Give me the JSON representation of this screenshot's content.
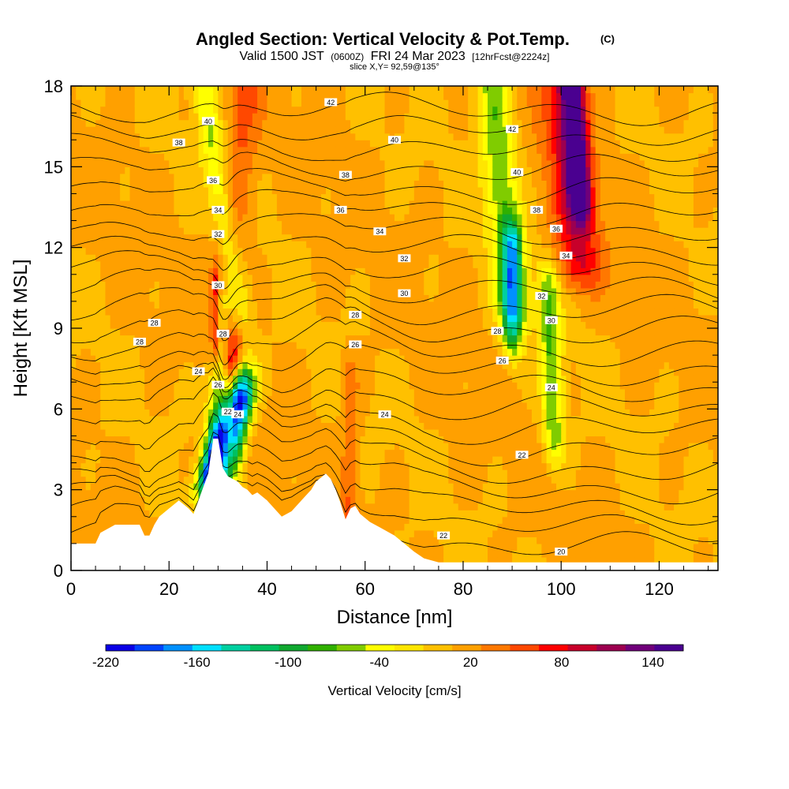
{
  "header": {
    "title": "Angled Section: Vertical Velocity & Pot.Temp.",
    "copyright": "(C)",
    "valid_prefix": "Valid 1500 JST",
    "valid_utc": "(0600Z)",
    "valid_date": "FRI 24 Mar 2023",
    "forecast": "[12hrFcst@2224z]",
    "slice": "slice X,Y= 92,59@135°"
  },
  "chart_data": {
    "type": "heatmap",
    "title": "Angled Section: Vertical Velocity & Pot.Temp.",
    "xlabel": "Distance [nm]",
    "ylabel": "Height [Kft MSL]",
    "xlim": [
      0,
      132
    ],
    "ylim": [
      0,
      18
    ],
    "x_ticks": [
      0,
      20,
      40,
      60,
      80,
      100,
      120
    ],
    "y_ticks": [
      0,
      3,
      6,
      9,
      12,
      15,
      18
    ],
    "colorbar": {
      "label": "Vertical Velocity [cm/s]",
      "min": -220,
      "max": 160,
      "step": 20,
      "tick_values": [
        -220,
        -160,
        -100,
        -40,
        20,
        80,
        140
      ],
      "colors": [
        "#0a00e6",
        "#0044ff",
        "#0090ff",
        "#00e0ff",
        "#00d0a0",
        "#00c060",
        "#10a830",
        "#30b000",
        "#80cc00",
        "#ffff00",
        "#ffe600",
        "#ffc000",
        "#ffa000",
        "#ff7800",
        "#ff4800",
        "#ff0000",
        "#c8002a",
        "#9c0050",
        "#70007a",
        "#4a0090"
      ]
    },
    "terrain": [
      [
        0,
        1.0
      ],
      [
        5,
        1.0
      ],
      [
        6,
        1.4
      ],
      [
        9,
        1.7
      ],
      [
        14,
        1.7
      ],
      [
        15,
        1.3
      ],
      [
        16,
        1.3
      ],
      [
        17,
        1.7
      ],
      [
        18,
        2.0
      ],
      [
        20,
        2.3
      ],
      [
        22,
        2.6
      ],
      [
        24,
        2.3
      ],
      [
        25,
        2.1
      ],
      [
        26,
        2.6
      ],
      [
        27,
        3.1
      ],
      [
        28,
        3.6
      ],
      [
        29,
        4.9
      ],
      [
        30,
        4.9
      ],
      [
        31,
        3.8
      ],
      [
        32,
        3.5
      ],
      [
        34,
        3.3
      ],
      [
        35,
        3.1
      ],
      [
        36,
        3.0
      ],
      [
        37,
        2.8
      ],
      [
        38,
        2.9
      ],
      [
        40,
        2.6
      ],
      [
        42,
        2.2
      ],
      [
        43,
        2.0
      ],
      [
        45,
        2.2
      ],
      [
        47,
        2.6
      ],
      [
        49,
        3.0
      ],
      [
        50,
        3.3
      ],
      [
        52,
        3.6
      ],
      [
        53,
        3.4
      ],
      [
        54,
        3.0
      ],
      [
        55,
        2.5
      ],
      [
        56,
        1.9
      ],
      [
        57,
        2.3
      ],
      [
        58,
        2.4
      ],
      [
        59,
        2.1
      ],
      [
        61,
        1.8
      ],
      [
        63,
        1.6
      ],
      [
        66,
        1.3
      ],
      [
        68,
        1.0
      ],
      [
        70,
        0.7
      ],
      [
        72,
        0.45
      ],
      [
        75,
        0.3
      ],
      [
        80,
        0.3
      ],
      [
        90,
        0.3
      ],
      [
        100,
        0.3
      ],
      [
        110,
        0.3
      ],
      [
        120,
        0.3
      ],
      [
        132,
        0.3
      ]
    ],
    "vertical_velocity_features": [
      {
        "x": 29.5,
        "z0": 3.6,
        "z1": 9.5,
        "tilt": 0.35,
        "width": 1.8,
        "value": -40
      },
      {
        "x": 31,
        "z0": 3.8,
        "z1": 6.5,
        "tilt": 1.6,
        "width": 2.5,
        "value": -170
      },
      {
        "x": 33,
        "z0": 3.3,
        "z1": 6.0,
        "tilt": 1.4,
        "width": 2.4,
        "value": -140
      },
      {
        "x": 32.5,
        "z0": 4.0,
        "z1": 7.5,
        "tilt": 0.3,
        "width": 1.4,
        "value": 100
      },
      {
        "x": 29.5,
        "z0": 8.5,
        "z1": 10.5,
        "tilt": 0.0,
        "width": 0.9,
        "value": 80
      },
      {
        "x": 33.5,
        "z0": 9.0,
        "z1": 18.0,
        "tilt": 0.5,
        "width": 3.5,
        "value": 60
      },
      {
        "x": 30.5,
        "z0": 10.0,
        "z1": 18.0,
        "tilt": -0.9,
        "width": 2.5,
        "value": -40
      },
      {
        "x": 57,
        "z0": 1.5,
        "z1": 7.0,
        "tilt": 0.0,
        "width": 1.6,
        "value": 60
      },
      {
        "x": 88,
        "z0": 10.0,
        "z1": 18.0,
        "tilt": -0.5,
        "width": 3.5,
        "value": -60
      },
      {
        "x": 90,
        "z0": 9.0,
        "z1": 12.0,
        "tilt": 0.0,
        "width": 2.0,
        "value": -100
      },
      {
        "x": 98,
        "z0": 5.0,
        "z1": 10.5,
        "tilt": -0.2,
        "width": 2.2,
        "value": -60
      },
      {
        "x": 102,
        "z0": 11.5,
        "z1": 18.0,
        "tilt": -0.5,
        "width": 4.5,
        "value": 100
      },
      {
        "x": 103,
        "z0": 14.0,
        "z1": 18.0,
        "tilt": -0.4,
        "width": 2.2,
        "value": 160
      }
    ],
    "potential_temperature_contours": {
      "levels": [
        20,
        21,
        22,
        23,
        24,
        25,
        26,
        27,
        28,
        29,
        30,
        31,
        32,
        33,
        34,
        35,
        36,
        37,
        38,
        39,
        40,
        41,
        42
      ],
      "labels": [
        {
          "text": "42",
          "x": 53,
          "z": 17.4
        },
        {
          "text": "42",
          "x": 90,
          "z": 16.4
        },
        {
          "text": "40",
          "x": 28,
          "z": 16.7
        },
        {
          "text": "40",
          "x": 66,
          "z": 16.0
        },
        {
          "text": "40",
          "x": 91,
          "z": 14.8
        },
        {
          "text": "38",
          "x": 22,
          "z": 15.9
        },
        {
          "text": "38",
          "x": 56,
          "z": 14.7
        },
        {
          "text": "38",
          "x": 95,
          "z": 13.4
        },
        {
          "text": "36",
          "x": 29,
          "z": 14.5
        },
        {
          "text": "36",
          "x": 55,
          "z": 13.4
        },
        {
          "text": "36",
          "x": 99,
          "z": 12.7
        },
        {
          "text": "34",
          "x": 30,
          "z": 13.4
        },
        {
          "text": "34",
          "x": 63,
          "z": 12.6
        },
        {
          "text": "34",
          "x": 101,
          "z": 11.7
        },
        {
          "text": "32",
          "x": 30,
          "z": 12.5
        },
        {
          "text": "32",
          "x": 68,
          "z": 11.6
        },
        {
          "text": "32",
          "x": 96,
          "z": 10.2
        },
        {
          "text": "30",
          "x": 30,
          "z": 10.6
        },
        {
          "text": "30",
          "x": 68,
          "z": 10.3
        },
        {
          "text": "30",
          "x": 98,
          "z": 9.3
        },
        {
          "text": "28",
          "x": 17,
          "z": 9.2
        },
        {
          "text": "28",
          "x": 14,
          "z": 8.5
        },
        {
          "text": "28",
          "x": 31,
          "z": 8.8
        },
        {
          "text": "28",
          "x": 58,
          "z": 9.5
        },
        {
          "text": "28",
          "x": 87,
          "z": 8.9
        },
        {
          "text": "26",
          "x": 58,
          "z": 8.4
        },
        {
          "text": "26",
          "x": 88,
          "z": 7.8
        },
        {
          "text": "26",
          "x": 30,
          "z": 6.9
        },
        {
          "text": "24",
          "x": 26,
          "z": 7.4
        },
        {
          "text": "24",
          "x": 34,
          "z": 5.8
        },
        {
          "text": "24",
          "x": 64,
          "z": 5.8
        },
        {
          "text": "24",
          "x": 98,
          "z": 6.8
        },
        {
          "text": "22",
          "x": 32,
          "z": 5.9
        },
        {
          "text": "22",
          "x": 92,
          "z": 4.3
        },
        {
          "text": "22",
          "x": 76,
          "z": 1.3
        },
        {
          "text": "20",
          "x": 100,
          "z": 0.7
        }
      ]
    }
  }
}
